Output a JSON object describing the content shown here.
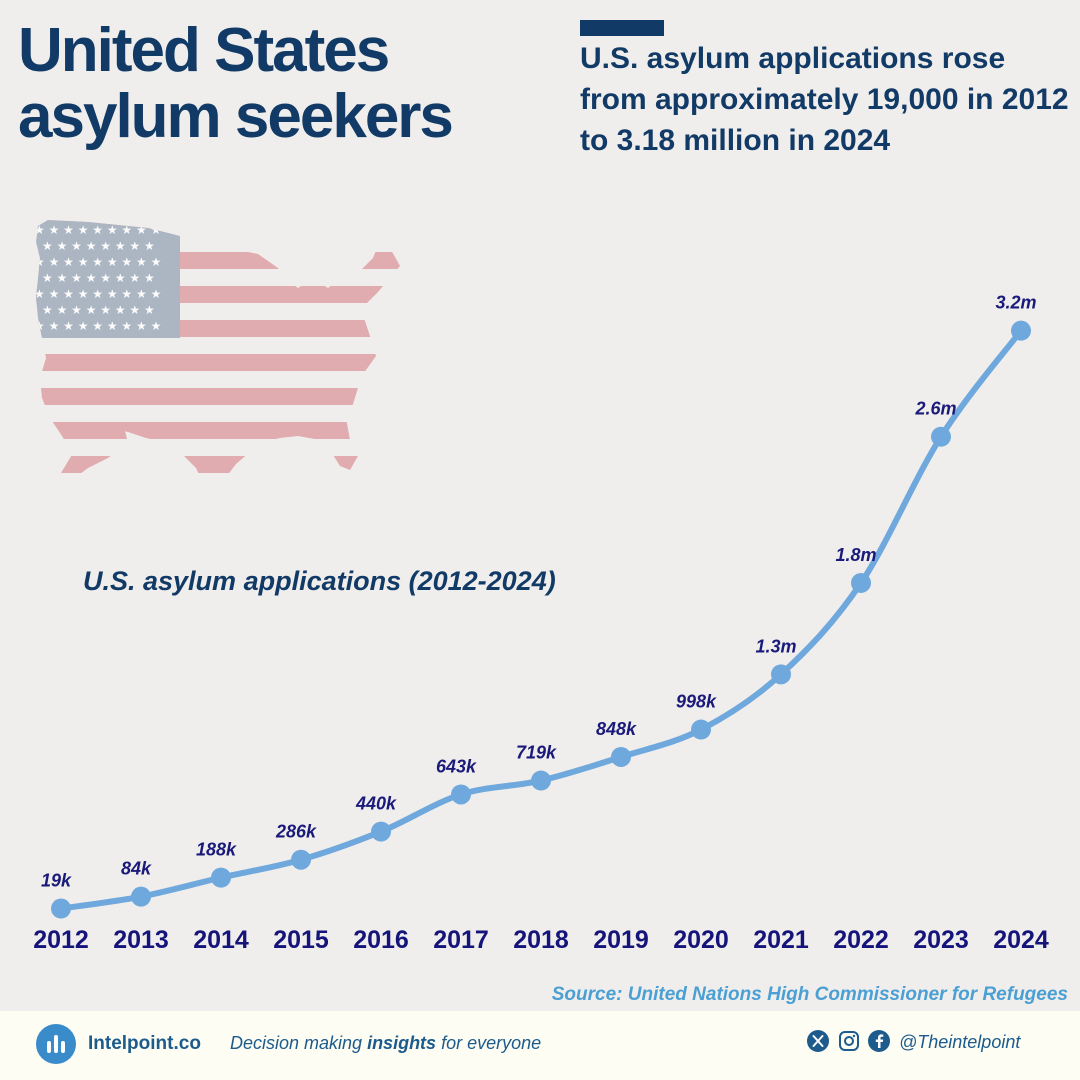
{
  "header": {
    "title_line1": "United States",
    "title_line2": "asylum seekers",
    "headline": "U.S. asylum applications rose from approximately 19,000 in 2012 to 3.18 million in 2024"
  },
  "chart_data": {
    "type": "line",
    "title": "U.S. asylum applications (2012-2024)",
    "xlabel": "",
    "ylabel": "",
    "categories": [
      "2012",
      "2013",
      "2014",
      "2015",
      "2016",
      "2017",
      "2018",
      "2019",
      "2020",
      "2021",
      "2022",
      "2023",
      "2024"
    ],
    "values": [
      19000,
      84000,
      188000,
      286000,
      440000,
      643000,
      719000,
      848000,
      998000,
      1300000,
      1800000,
      2600000,
      3180000
    ],
    "data_labels": [
      "19k",
      "84k",
      "188k",
      "286k",
      "440k",
      "643k",
      "719k",
      "848k",
      "998k",
      "1.3m",
      "1.8m",
      "2.6m",
      "3.2m"
    ],
    "ylim": [
      0,
      3200000
    ],
    "grid": false,
    "legend": "none",
    "colors": {
      "line": "#6fa8dc",
      "label": "#1a1a7a",
      "tick": "#14147a"
    }
  },
  "source": "Source: United Nations High Commissioner for Refugees",
  "footer": {
    "brand": "Intelpoint.co",
    "tagline_pre": "Decision making ",
    "tagline_bold": "insights",
    "tagline_post": " for everyone",
    "handle": "@Theintelpoint",
    "social_icons": [
      "x-icon",
      "instagram-icon",
      "facebook-icon"
    ]
  }
}
